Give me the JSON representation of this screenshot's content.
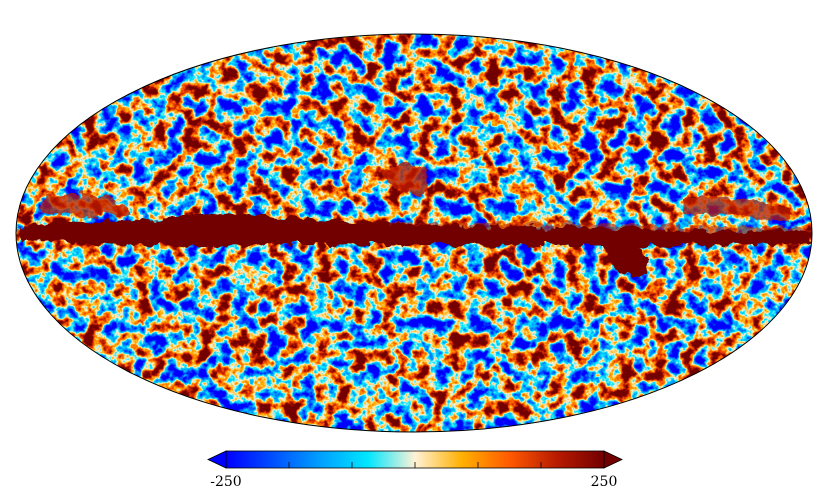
{
  "map": {
    "projection": "mollweide",
    "palette": [
      "#0000ff",
      "#0050ff",
      "#00a0ff",
      "#00e6ff",
      "#fff2d6",
      "#ffb000",
      "#ff5a00",
      "#b81a00",
      "#720000"
    ],
    "galactic_band_color": "#720000",
    "outline_color": "#000000"
  },
  "colorbar": {
    "min_label": "-250",
    "max_label": "250",
    "min_value": -250,
    "max_value": 250,
    "extend": "both",
    "tick_count": 7
  }
}
